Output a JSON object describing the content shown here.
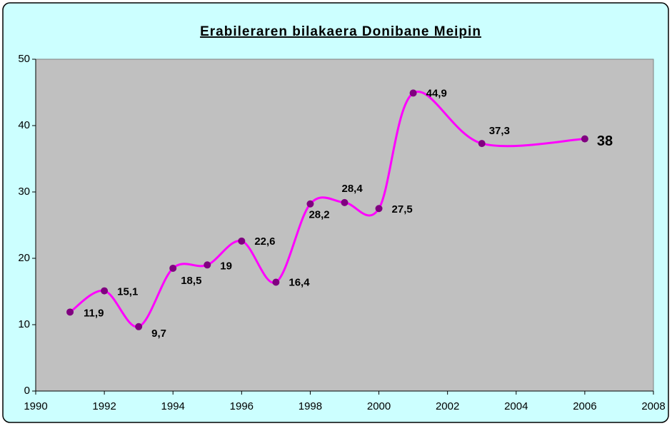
{
  "chart_data": {
    "type": "line",
    "title": "Erabileraren bilakaera Donibane Meipin",
    "x": [
      1991,
      1992,
      1993,
      1994,
      1995,
      1996,
      1997,
      1998,
      1999,
      2000,
      2001,
      2003,
      2006
    ],
    "series": [
      {
        "color": "#ff00ff",
        "marker_color": "#800080",
        "values": [
          11.9,
          15.1,
          9.7,
          18.5,
          19,
          22.6,
          16.4,
          28.2,
          28.4,
          27.5,
          44.9,
          37.3,
          38
        ],
        "value_labels": [
          "11,9",
          "15,1",
          "9,7",
          "18,5",
          "19",
          "22,6",
          "16,4",
          "28,2",
          "28,4",
          "27,5",
          "44,9",
          "37,3",
          "38"
        ]
      }
    ],
    "xlim": [
      1990,
      2008
    ],
    "xticks": [
      1990,
      1992,
      1994,
      1996,
      1998,
      2000,
      2002,
      2004,
      2006,
      2008
    ],
    "ylim": [
      0,
      50
    ],
    "yticks": [
      0,
      10,
      20,
      30,
      40,
      50
    ],
    "smooth": true,
    "grid": false
  }
}
